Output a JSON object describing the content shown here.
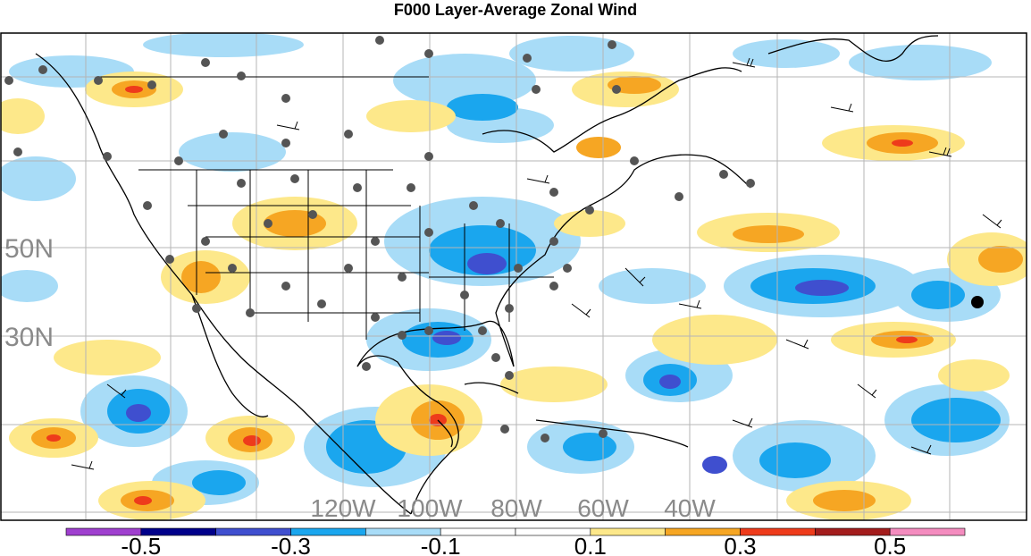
{
  "title": "F000 Layer-Average Zonal Wind",
  "lat_labels": [
    {
      "text": "50N",
      "lat": 50
    },
    {
      "text": "30N",
      "lat": 30
    }
  ],
  "lon_labels": [
    {
      "text": "120W",
      "lon": -120
    },
    {
      "text": "100W",
      "lon": -100
    },
    {
      "text": "80W",
      "lon": -80
    },
    {
      "text": "60W",
      "lon": -60
    },
    {
      "text": "40W",
      "lon": -40
    }
  ],
  "colorbar": {
    "colors": [
      "#9f3fcf",
      "#00008a",
      "#3f4fcf",
      "#1aa6ee",
      "#a8dcf7",
      "#ffffff",
      "#ffffff",
      "#fde88a",
      "#f6a623",
      "#ee3b1b",
      "#a31c1c",
      "#f48cbf"
    ],
    "labels": [
      "-0.5",
      "-0.3",
      "-0.1",
      "0.1",
      "0.3",
      "0.5"
    ]
  },
  "legend_colors": {
    "strong_negative": "#3f4fcf",
    "negative": "#1aa6ee",
    "weak_negative": "#a8dcf7",
    "weak_positive": "#fde88a",
    "positive": "#f6a623",
    "strong_positive": "#ee3b1b"
  }
}
